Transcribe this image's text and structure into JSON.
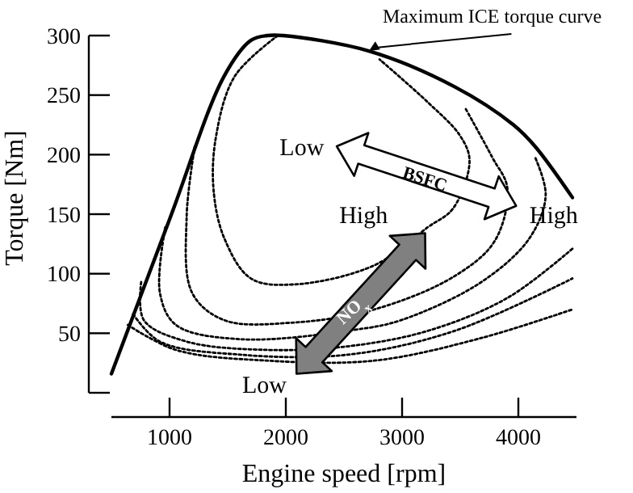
{
  "chart_data": {
    "type": "line",
    "xlabel": "Engine speed [rpm]",
    "ylabel": "Torque [Nm]",
    "xlim": [
      500,
      4500
    ],
    "ylim": [
      0,
      300
    ],
    "xticks": [
      1000,
      2000,
      3000,
      4000
    ],
    "yticks": [
      {
        "value": 0,
        "label": null
      },
      50,
      100,
      150,
      200,
      250,
      300
    ],
    "series": [
      {
        "color": "#000000",
        "line_style": "solid",
        "x": [
          500,
          1009,
          1470,
          1700,
          1840,
          1977,
          2714,
          3452,
          3958,
          4143,
          4465
        ],
        "values": [
          16,
          148,
          266,
          296,
          300,
          300,
          287,
          257,
          225,
          207,
          164
        ]
      },
      {
        "color": "#000000",
        "line_style": "dotted",
        "x": [
          1931,
          1562,
          1401,
          1378,
          1470,
          1700,
          2069,
          2760,
          3221,
          3440,
          3580,
          3498,
          3221,
          2806
        ],
        "values": [
          300,
          266,
          216,
          171,
          130,
          96,
          91,
          107,
          139,
          155,
          195,
          216,
          244,
          280
        ]
      },
      {
        "color": "#000000",
        "line_style": "dotted",
        "x": [
          1217,
          1147,
          1194,
          1470,
          2069,
          2760,
          3452,
          3800,
          3905,
          3774,
          3544
        ],
        "values": [
          207,
          148,
          84,
          61,
          59,
          70,
          98,
          128,
          172,
          198,
          239
        ]
      },
      {
        "color": "#000000",
        "line_style": "dotted",
        "x": [
          963,
          917,
          1055,
          1608,
          2600,
          2991,
          3682,
          4097,
          4235,
          4143
        ],
        "values": [
          139,
          84,
          57,
          45,
          53,
          61,
          93,
          130,
          166,
          198
        ]
      },
      {
        "color": "#000000",
        "line_style": "dotted",
        "x": [
          756,
          779,
          1147,
          1839,
          2530,
          3221,
          3912,
          4465
        ],
        "values": [
          93,
          61,
          43,
          36,
          39,
          52,
          80,
          121
        ]
      },
      {
        "color": "#000000",
        "line_style": "dotted",
        "x": [
          687,
          917,
          1608,
          2530,
          3452,
          4465
        ],
        "values": [
          66,
          43,
          32,
          32,
          52,
          96
        ]
      },
      {
        "color": "#000000",
        "line_style": "dotted",
        "x": [
          641,
          1055,
          1839,
          2760,
          3682,
          4465
        ],
        "values": [
          57,
          36,
          27,
          27,
          46,
          70
        ]
      }
    ],
    "annotations": [
      {
        "text": "Maximum ICE torque curve",
        "x": 2714,
        "y": 287
      },
      "Low",
      "High",
      "BSFC",
      "High",
      "NO$_{x}$",
      "Low"
    ]
  }
}
